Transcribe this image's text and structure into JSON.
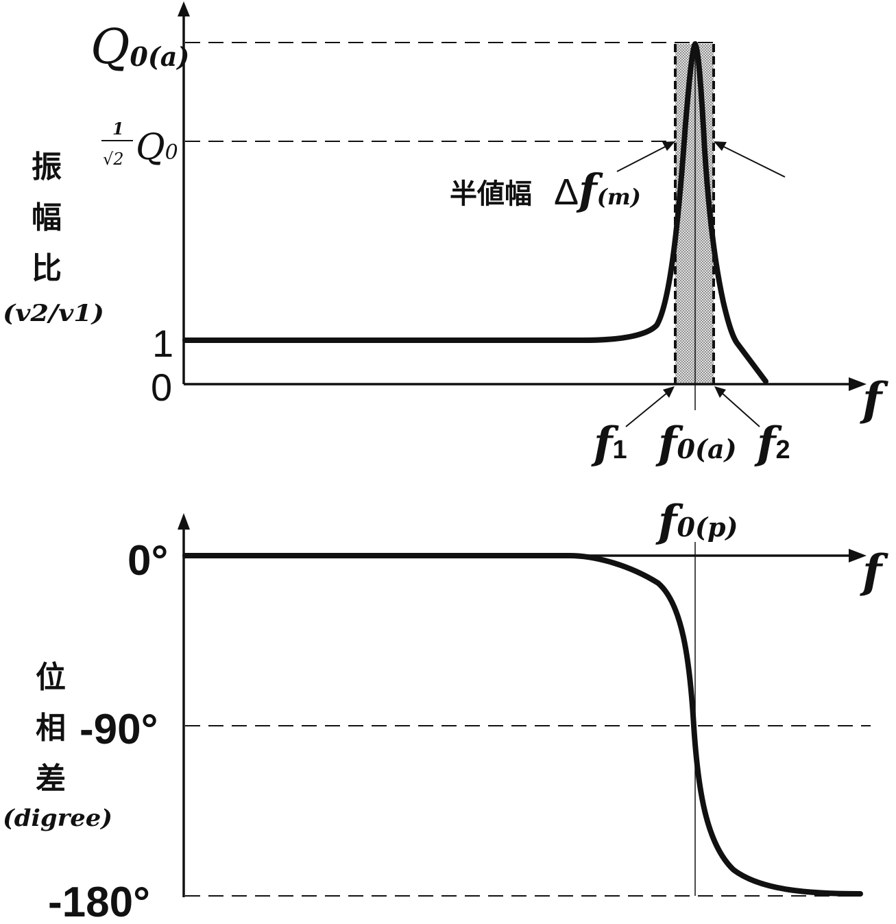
{
  "colors": {
    "ink": "#111111",
    "band": "#d8d8d8",
    "background": "#ffffff"
  },
  "top_chart": {
    "x_axis_label": "f",
    "y_label_chars": [
      "振",
      "幅",
      "比"
    ],
    "y_label_unit": "(v2/v1)",
    "peak_label": {
      "main": "Q",
      "sub": "0(a)"
    },
    "halfpower_label": {
      "numerator": "1",
      "denominator": "√2",
      "main": "Q",
      "sub": "0"
    },
    "tick_one": "1",
    "tick_zero": "0",
    "bandwidth_text": "半値幅",
    "bandwidth_symbol": {
      "delta": "Δ",
      "main": "f",
      "sub": "(m)"
    },
    "f1_label": {
      "main": "f",
      "sub": "1"
    },
    "f0a_label": {
      "main": "f",
      "sub": "0(a)"
    },
    "f2_label": {
      "main": "f",
      "sub": "2"
    }
  },
  "bottom_chart": {
    "x_axis_label": "f",
    "y_label_chars": [
      "位",
      "相",
      "差"
    ],
    "y_label_unit": "(digree)",
    "f0p_label": {
      "main": "f",
      "sub": "0(p)"
    },
    "tick_0": "0°",
    "tick_m90": "-90°",
    "tick_m180": "-180°"
  }
}
